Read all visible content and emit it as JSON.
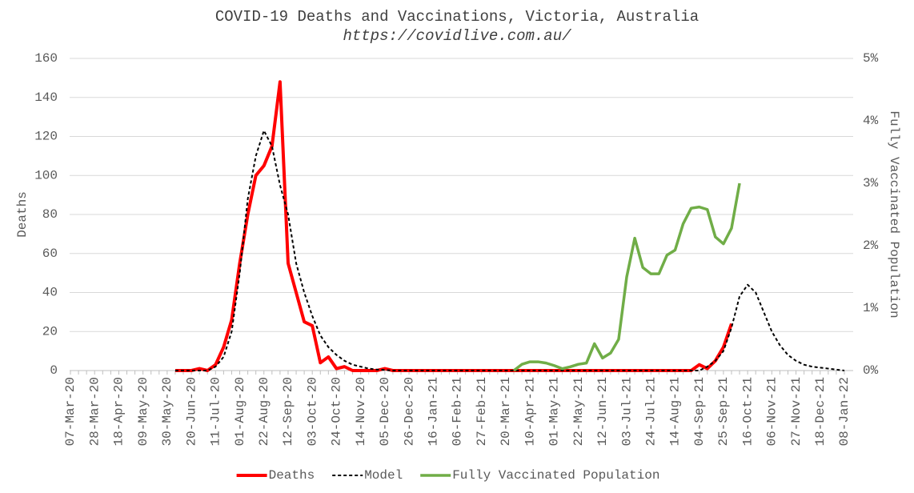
{
  "chart_data": {
    "type": "line",
    "title": "COVID-19 Deaths and Vaccinations, Victoria, Australia",
    "subtitle": "https://covidlive.com.au/",
    "y_label": "Deaths",
    "y2_label": "Fully Vaccinated Population",
    "categories": [
      "07-Mar-20",
      null,
      null,
      "28-Mar-20",
      null,
      null,
      "18-Apr-20",
      null,
      null,
      "09-May-20",
      null,
      null,
      "30-May-20",
      null,
      null,
      "20-Jun-20",
      null,
      null,
      "11-Jul-20",
      null,
      null,
      "01-Aug-20",
      null,
      null,
      "22-Aug-20",
      null,
      null,
      "12-Sep-20",
      null,
      null,
      "03-Oct-20",
      null,
      null,
      "24-Oct-20",
      null,
      null,
      "14-Nov-20",
      null,
      null,
      "05-Dec-20",
      null,
      null,
      "26-Dec-20",
      null,
      null,
      "16-Jan-21",
      null,
      null,
      "06-Feb-21",
      null,
      null,
      "27-Feb-21",
      null,
      null,
      "20-Mar-21",
      null,
      null,
      "10-Apr-21",
      null,
      null,
      "01-May-21",
      null,
      null,
      "22-May-21",
      null,
      null,
      "12-Jun-21",
      null,
      null,
      "03-Jul-21",
      null,
      null,
      "24-Jul-21",
      null,
      null,
      "14-Aug-21",
      null,
      null,
      "04-Sep-21",
      null,
      null,
      "25-Sep-21",
      null,
      null,
      "16-Oct-21",
      null,
      null,
      "06-Nov-21",
      null,
      null,
      "27-Nov-21",
      null,
      null,
      "18-Dec-21",
      null,
      null,
      "08-Jan-22"
    ],
    "series": [
      {
        "name": "Deaths",
        "color": "#ff0000",
        "width": 4,
        "dash": false,
        "values": [
          null,
          null,
          null,
          null,
          null,
          null,
          null,
          null,
          null,
          null,
          null,
          null,
          null,
          0,
          0,
          0,
          1,
          0,
          3,
          12,
          26,
          55,
          80,
          100,
          105,
          115,
          148,
          55,
          40,
          25,
          23,
          4,
          7,
          1,
          2,
          0,
          0,
          0,
          0,
          1,
          0,
          0,
          0,
          0,
          0,
          0,
          0,
          0,
          0,
          0,
          0,
          0,
          0,
          0,
          0,
          0,
          0,
          0,
          0,
          0,
          0,
          0,
          0,
          0,
          0,
          0,
          0,
          0,
          0,
          0,
          0,
          0,
          0,
          0,
          0,
          0,
          0,
          0,
          3,
          1,
          5,
          12,
          24,
          null,
          null,
          null,
          null,
          null,
          null,
          null,
          null,
          null,
          null,
          null,
          null,
          null,
          null
        ]
      },
      {
        "name": "Model",
        "color": "#000000",
        "width": 2,
        "dash": true,
        "values": [
          null,
          null,
          null,
          null,
          null,
          null,
          null,
          null,
          null,
          null,
          null,
          null,
          null,
          0,
          0,
          0,
          0,
          0,
          2,
          7,
          20,
          50,
          88,
          110,
          123,
          115,
          95,
          80,
          55,
          40,
          28,
          18,
          12,
          8,
          5,
          3,
          2,
          1,
          0.5,
          0.3,
          0,
          0,
          0,
          0,
          0,
          0,
          0,
          0,
          0,
          0,
          0,
          0,
          0,
          0,
          0,
          0,
          0,
          0,
          0,
          0,
          0,
          0,
          0,
          0,
          0,
          0,
          0,
          0,
          0,
          0,
          0,
          0,
          0,
          0,
          0,
          0,
          0,
          0,
          0,
          2,
          5,
          10,
          22,
          38,
          44,
          40,
          30,
          20,
          13,
          8,
          5,
          3,
          2,
          1.5,
          1,
          0.5,
          0
        ]
      },
      {
        "name": "Fully Vaccinated Population",
        "color": "#70ad47",
        "width": 3.5,
        "dash": false,
        "axis": "y2",
        "values": [
          null,
          null,
          null,
          null,
          null,
          null,
          null,
          null,
          null,
          null,
          null,
          null,
          null,
          null,
          null,
          null,
          null,
          null,
          null,
          null,
          null,
          null,
          null,
          null,
          null,
          null,
          null,
          null,
          null,
          null,
          null,
          null,
          null,
          null,
          null,
          null,
          null,
          null,
          null,
          null,
          null,
          null,
          null,
          null,
          null,
          null,
          null,
          null,
          null,
          null,
          null,
          null,
          null,
          null,
          null,
          0,
          0.1,
          0.14,
          0.14,
          0.12,
          0.08,
          0.03,
          0.06,
          0.1,
          0.12,
          0.43,
          0.2,
          0.28,
          0.5,
          1.5,
          2.12,
          1.65,
          1.55,
          1.55,
          1.85,
          1.93,
          2.35,
          2.6,
          2.62,
          2.58,
          2.14,
          2.03,
          2.28,
          3.0,
          null,
          null,
          null,
          null,
          null,
          null,
          null,
          null,
          null,
          null,
          null,
          null,
          null
        ]
      }
    ],
    "ylim": [
      0,
      160
    ],
    "yticks": [
      0,
      20,
      40,
      60,
      80,
      100,
      120,
      140,
      160
    ],
    "y2lim": [
      0,
      5
    ],
    "y2ticks": [
      {
        "value": 0,
        "label": "0%"
      },
      {
        "value": 1,
        "label": "1%"
      },
      {
        "value": 2,
        "label": "2%"
      },
      {
        "value": 3,
        "label": "3%"
      },
      {
        "value": 4,
        "label": "4%"
      },
      {
        "value": 5,
        "label": "5%"
      }
    ],
    "grid": true,
    "legend": "bottom"
  }
}
